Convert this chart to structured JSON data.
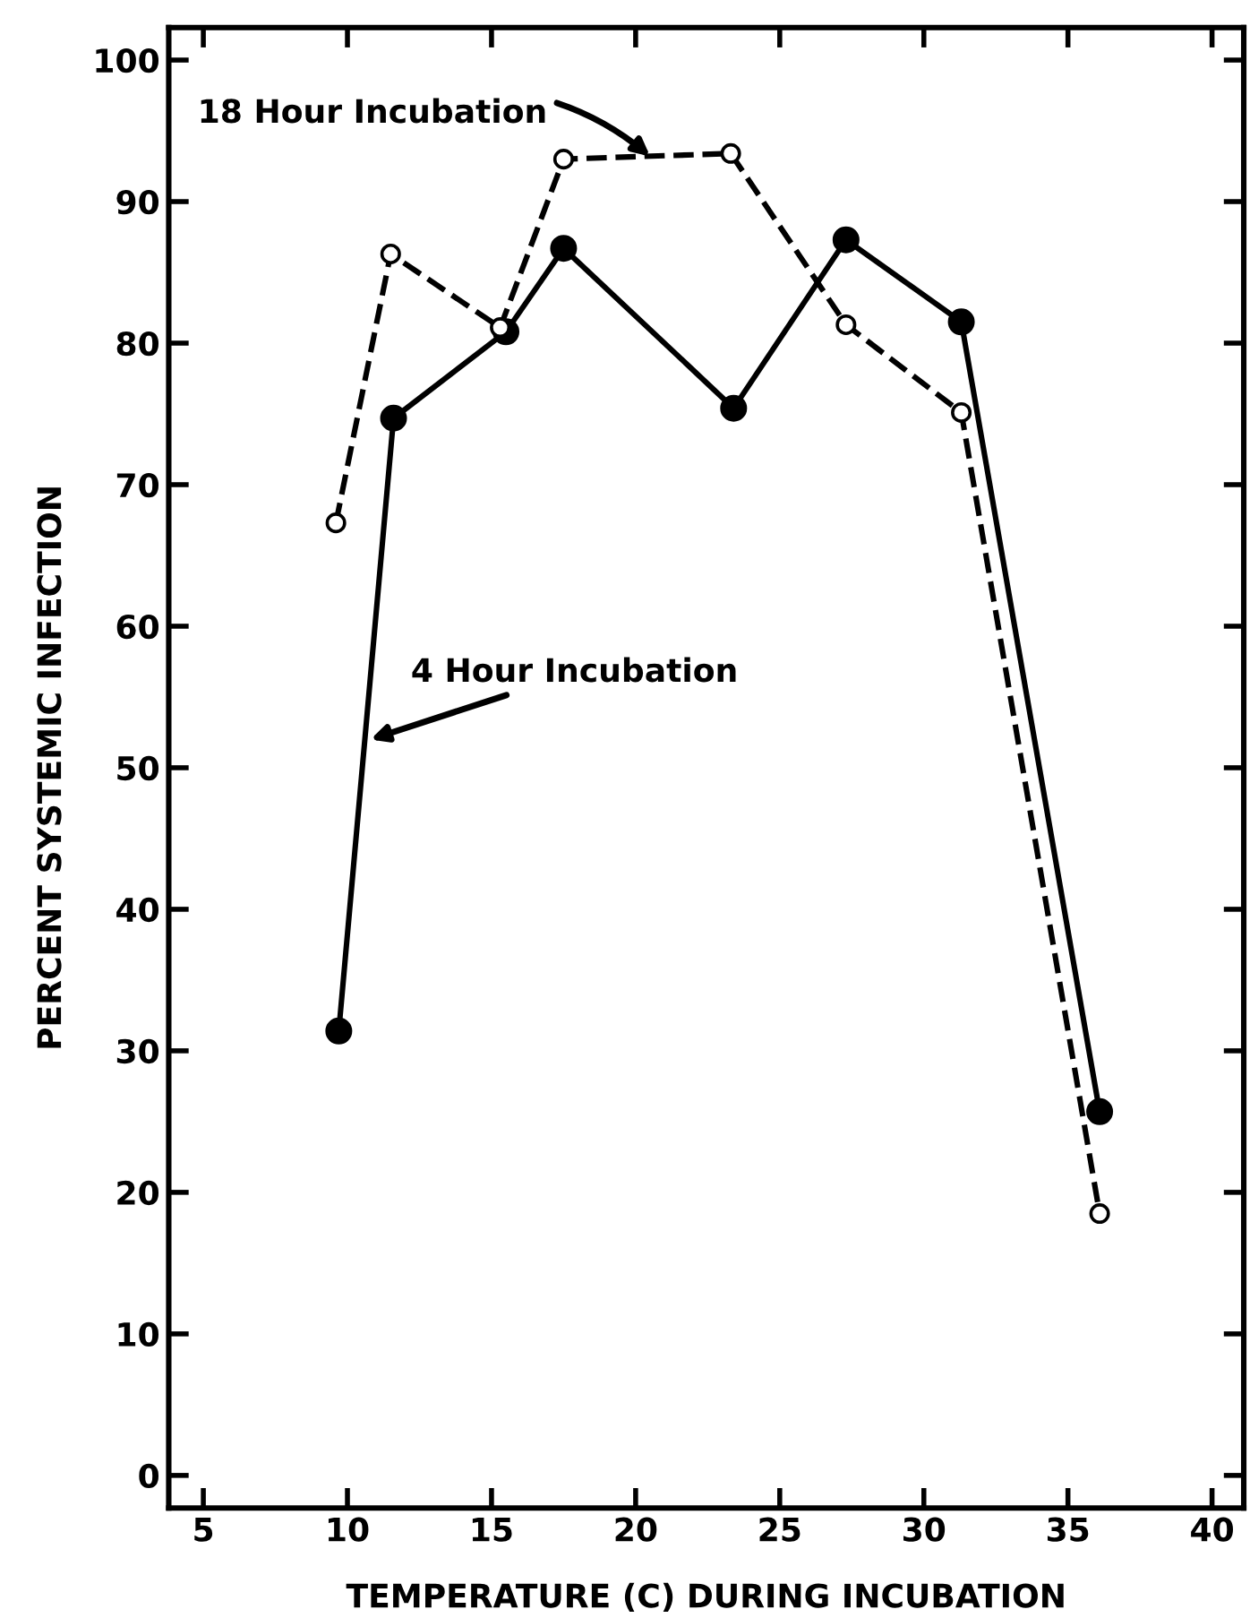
{
  "chart_data": {
    "type": "line",
    "xlabel": "TEMPERATURE (C) DURING INCUBATION",
    "ylabel": "PERCENT SYSTEMIC INFECTION",
    "xlim": [
      3.8,
      41.1
    ],
    "ylim": [
      -2.3,
      102.3
    ],
    "xticks": [
      5,
      10,
      15,
      20,
      25,
      30,
      35,
      40
    ],
    "yticks": [
      0,
      10,
      20,
      30,
      40,
      50,
      60,
      70,
      80,
      90,
      100
    ],
    "tick_labels": "xy",
    "grid": false,
    "legend": false,
    "marker": "circle",
    "series": [
      {
        "color": "#000000",
        "line_style": "solid",
        "x": [
          9.7,
          11.6,
          15.5,
          17.5,
          23.4,
          27.3,
          31.3,
          36.1
        ],
        "values": [
          31.4,
          74.7,
          80.8,
          86.7,
          75.4,
          87.3,
          81.5,
          25.7
        ]
      },
      {
        "color": "#000000",
        "line_style": "dashed",
        "x": [
          9.6,
          11.5,
          15.3,
          17.5,
          23.3,
          27.3,
          31.3,
          36.1
        ],
        "values": [
          67.3,
          86.3,
          81.1,
          93.0,
          93.4,
          81.3,
          75.1,
          18.5
        ]
      }
    ],
    "annotations": [
      {
        "text": "18 Hour Incubation",
        "x": 20.5,
        "y": 93.2
      },
      {
        "text": "4 Hour Incubation",
        "x": 10.8,
        "y": 52
      }
    ]
  }
}
